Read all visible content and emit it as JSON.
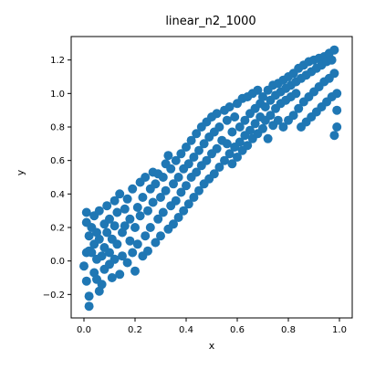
{
  "chart_data": {
    "type": "scatter",
    "title": "linear_n2_1000",
    "xlabel": "x",
    "ylabel": "y",
    "xlim": [
      -0.05,
      1.05
    ],
    "ylim": [
      -0.34,
      1.34
    ],
    "grid": false,
    "xticks": [
      0.0,
      0.2,
      0.4,
      0.6,
      0.8,
      1.0
    ],
    "xtick_labels": [
      "0.0",
      "0.2",
      "0.4",
      "0.6",
      "0.8",
      "1.0"
    ],
    "yticks": [
      -0.2,
      0.0,
      0.2,
      0.4,
      0.6,
      0.8,
      1.0,
      1.2
    ],
    "ytick_labels": [
      "−0.2",
      "0.0",
      "0.2",
      "0.4",
      "0.6",
      "0.8",
      "1.0",
      "1.2"
    ],
    "marker_color": "#1f77b4",
    "series": [
      {
        "points": [
          [
            0.0,
            -0.03
          ],
          [
            0.01,
            0.23
          ],
          [
            0.01,
            0.05
          ],
          [
            0.01,
            -0.12
          ],
          [
            0.01,
            0.29
          ],
          [
            0.02,
            -0.27
          ],
          [
            0.02,
            0.15
          ],
          [
            0.02,
            0.06
          ],
          [
            0.02,
            -0.21
          ],
          [
            0.03,
            0.2
          ],
          [
            0.03,
            0.05
          ],
          [
            0.04,
            -0.07
          ],
          [
            0.04,
            0.27
          ],
          [
            0.04,
            0.1
          ],
          [
            0.05,
            -0.11
          ],
          [
            0.05,
            0.17
          ],
          [
            0.05,
            0.01
          ],
          [
            0.06,
            -0.18
          ],
          [
            0.06,
            0.3
          ],
          [
            0.06,
            0.13
          ],
          [
            0.07,
            0.03
          ],
          [
            0.07,
            -0.14
          ],
          [
            0.08,
            0.22
          ],
          [
            0.08,
            0.08
          ],
          [
            0.08,
            -0.05
          ],
          [
            0.09,
            0.33
          ],
          [
            0.09,
            0.17
          ],
          [
            0.1,
            -0.02
          ],
          [
            0.1,
            0.25
          ],
          [
            0.1,
            0.05
          ],
          [
            0.11,
            -0.1
          ],
          [
            0.11,
            0.13
          ],
          [
            0.12,
            0.36
          ],
          [
            0.12,
            0.21
          ],
          [
            0.12,
            0.01
          ],
          [
            0.13,
            0.29
          ],
          [
            0.13,
            0.1
          ],
          [
            0.14,
            -0.08
          ],
          [
            0.14,
            0.4
          ],
          [
            0.15,
            0.17
          ],
          [
            0.15,
            0.03
          ],
          [
            0.16,
            0.31
          ],
          [
            0.16,
            0.21
          ],
          [
            0.17,
            -0.01
          ],
          [
            0.17,
            0.37
          ],
          [
            0.18,
            0.12
          ],
          [
            0.18,
            0.25
          ],
          [
            0.19,
            0.05
          ],
          [
            0.19,
            0.43
          ],
          [
            0.2,
            0.2
          ],
          [
            0.2,
            -0.06
          ],
          [
            0.21,
            0.32
          ],
          [
            0.21,
            0.1
          ],
          [
            0.22,
            0.47
          ],
          [
            0.22,
            0.27
          ],
          [
            0.23,
            0.03
          ],
          [
            0.23,
            0.38
          ],
          [
            0.24,
            0.15
          ],
          [
            0.24,
            0.5
          ],
          [
            0.25,
            0.3
          ],
          [
            0.25,
            0.06
          ],
          [
            0.26,
            0.43
          ],
          [
            0.26,
            0.2
          ],
          [
            0.27,
            0.53
          ],
          [
            0.27,
            0.35
          ],
          [
            0.28,
            0.11
          ],
          [
            0.28,
            0.46
          ],
          [
            0.29,
            0.25
          ],
          [
            0.29,
            0.52
          ],
          [
            0.3,
            0.38
          ],
          [
            0.3,
            0.15
          ],
          [
            0.31,
            0.5
          ],
          [
            0.31,
            0.29
          ],
          [
            0.32,
            0.58
          ],
          [
            0.32,
            0.42
          ],
          [
            0.33,
            0.19
          ],
          [
            0.33,
            0.63
          ],
          [
            0.34,
            0.33
          ],
          [
            0.34,
            0.55
          ],
          [
            0.35,
            0.46
          ],
          [
            0.35,
            0.22
          ],
          [
            0.36,
            0.6
          ],
          [
            0.36,
            0.36
          ],
          [
            0.37,
            0.5
          ],
          [
            0.37,
            0.26
          ],
          [
            0.38,
            0.64
          ],
          [
            0.38,
            0.41
          ],
          [
            0.39,
            0.55
          ],
          [
            0.39,
            0.3
          ],
          [
            0.4,
            0.68
          ],
          [
            0.4,
            0.45
          ],
          [
            0.41,
            0.58
          ],
          [
            0.41,
            0.34
          ],
          [
            0.42,
            0.72
          ],
          [
            0.42,
            0.5
          ],
          [
            0.43,
            0.62
          ],
          [
            0.43,
            0.38
          ],
          [
            0.44,
            0.76
          ],
          [
            0.44,
            0.53
          ],
          [
            0.45,
            0.66
          ],
          [
            0.45,
            0.42
          ],
          [
            0.46,
            0.8
          ],
          [
            0.46,
            0.57
          ],
          [
            0.47,
            0.7
          ],
          [
            0.47,
            0.46
          ],
          [
            0.48,
            0.83
          ],
          [
            0.48,
            0.6
          ],
          [
            0.49,
            0.74
          ],
          [
            0.49,
            0.49
          ],
          [
            0.5,
            0.86
          ],
          [
            0.5,
            0.64
          ],
          [
            0.51,
            0.77
          ],
          [
            0.51,
            0.52
          ],
          [
            0.52,
            0.88
          ],
          [
            0.52,
            0.67
          ],
          [
            0.53,
            0.8
          ],
          [
            0.53,
            0.56
          ],
          [
            0.54,
            0.72
          ],
          [
            0.55,
            0.9
          ],
          [
            0.55,
            0.6
          ],
          [
            0.56,
            0.84
          ],
          [
            0.56,
            0.7
          ],
          [
            0.57,
            0.64
          ],
          [
            0.57,
            0.92
          ],
          [
            0.58,
            0.77
          ],
          [
            0.58,
            0.58
          ],
          [
            0.59,
            0.86
          ],
          [
            0.59,
            0.68
          ],
          [
            0.6,
            0.94
          ],
          [
            0.6,
            0.62
          ],
          [
            0.61,
            0.8
          ],
          [
            0.61,
            0.71
          ],
          [
            0.62,
            0.97
          ],
          [
            0.62,
            0.66
          ],
          [
            0.63,
            0.84
          ],
          [
            0.63,
            0.75
          ],
          [
            0.64,
            0.98
          ],
          [
            0.64,
            0.69
          ],
          [
            0.65,
            0.88
          ],
          [
            0.65,
            0.78
          ],
          [
            0.66,
            1.0
          ],
          [
            0.66,
            0.73
          ],
          [
            0.67,
            0.91
          ],
          [
            0.67,
            0.82
          ],
          [
            0.68,
            1.02
          ],
          [
            0.68,
            0.76
          ],
          [
            0.69,
            0.94
          ],
          [
            0.69,
            0.86
          ],
          [
            0.7,
            0.98
          ],
          [
            0.7,
            0.79
          ],
          [
            0.71,
            0.92
          ],
          [
            0.71,
            0.84
          ],
          [
            0.72,
            1.02
          ],
          [
            0.72,
            0.73
          ],
          [
            0.73,
            0.96
          ],
          [
            0.73,
            0.87
          ],
          [
            0.74,
            1.05
          ],
          [
            0.74,
            0.81
          ],
          [
            0.75,
            0.99
          ],
          [
            0.75,
            0.91
          ],
          [
            0.76,
            1.06
          ],
          [
            0.76,
            0.84
          ],
          [
            0.77,
            1.01
          ],
          [
            0.77,
            0.94
          ],
          [
            0.78,
            1.08
          ],
          [
            0.78,
            0.8
          ],
          [
            0.79,
            1.03
          ],
          [
            0.79,
            0.96
          ],
          [
            0.8,
            1.1
          ],
          [
            0.8,
            0.84
          ],
          [
            0.81,
            1.05
          ],
          [
            0.81,
            0.98
          ],
          [
            0.82,
            1.12
          ],
          [
            0.82,
            0.87
          ],
          [
            0.83,
            1.07
          ],
          [
            0.83,
            1.0
          ],
          [
            0.84,
            1.15
          ],
          [
            0.84,
            0.91
          ],
          [
            0.85,
            1.09
          ],
          [
            0.85,
            0.8
          ],
          [
            0.86,
            1.17
          ],
          [
            0.86,
            0.95
          ],
          [
            0.87,
            1.11
          ],
          [
            0.87,
            0.83
          ],
          [
            0.88,
            1.19
          ],
          [
            0.88,
            0.98
          ],
          [
            0.89,
            1.13
          ],
          [
            0.89,
            0.86
          ],
          [
            0.9,
            1.2
          ],
          [
            0.9,
            1.01
          ],
          [
            0.91,
            1.15
          ],
          [
            0.91,
            0.89
          ],
          [
            0.92,
            1.21
          ],
          [
            0.92,
            1.04
          ],
          [
            0.93,
            1.17
          ],
          [
            0.93,
            0.92
          ],
          [
            0.94,
            1.22
          ],
          [
            0.94,
            1.07
          ],
          [
            0.95,
            1.19
          ],
          [
            0.95,
            0.95
          ],
          [
            0.96,
            1.24
          ],
          [
            0.96,
            1.09
          ],
          [
            0.97,
            1.2
          ],
          [
            0.97,
            0.98
          ],
          [
            0.98,
            1.26
          ],
          [
            0.98,
            1.12
          ],
          [
            0.99,
            1.0
          ],
          [
            0.99,
            0.9
          ],
          [
            0.99,
            0.8
          ],
          [
            0.98,
            0.75
          ]
        ]
      }
    ]
  }
}
